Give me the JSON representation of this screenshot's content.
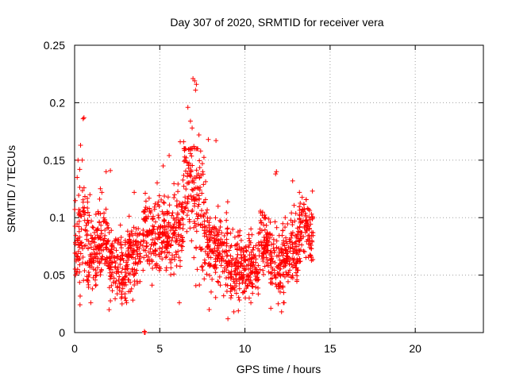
{
  "chart_data": {
    "type": "scatter",
    "title": "Day 307 of 2020, SRMTID for receiver vera",
    "xlabel": "GPS time / hours",
    "ylabel": "SRMTID / TECUs",
    "xlim": [
      0,
      24
    ],
    "ylim": [
      0,
      0.25
    ],
    "x_ticks": [
      0,
      5,
      10,
      15,
      20
    ],
    "x_tick_labels": [
      "0",
      "5",
      "10",
      "15",
      "20"
    ],
    "y_ticks": [
      0,
      0.05,
      0.1,
      0.15,
      0.2,
      0.25
    ],
    "y_tick_labels": [
      "0",
      "0.05",
      "0.1",
      "0.15",
      "0.2",
      "0.25"
    ],
    "grid": true,
    "marker": "+",
    "series_color": "#ff0000",
    "segments": [
      [
        0.0,
        0.45,
        0.082,
        0.03
      ],
      [
        0.45,
        0.8,
        0.09,
        0.03
      ],
      [
        0.8,
        1.3,
        0.07,
        0.02
      ],
      [
        1.3,
        2.0,
        0.08,
        0.022
      ],
      [
        2.0,
        2.6,
        0.062,
        0.022
      ],
      [
        2.6,
        3.2,
        0.055,
        0.02
      ],
      [
        3.2,
        3.9,
        0.07,
        0.02
      ],
      [
        4.0,
        4.8,
        0.088,
        0.022
      ],
      [
        4.8,
        5.8,
        0.082,
        0.022
      ],
      [
        5.8,
        6.4,
        0.092,
        0.022
      ],
      [
        6.4,
        7.1,
        0.13,
        0.035
      ],
      [
        7.1,
        7.6,
        0.108,
        0.035
      ],
      [
        7.6,
        8.2,
        0.08,
        0.025
      ],
      [
        8.2,
        9.0,
        0.07,
        0.022
      ],
      [
        9.0,
        10.0,
        0.06,
        0.018
      ],
      [
        10.0,
        10.8,
        0.058,
        0.018
      ],
      [
        10.8,
        11.5,
        0.075,
        0.02
      ],
      [
        11.5,
        12.5,
        0.062,
        0.02
      ],
      [
        12.5,
        13.2,
        0.075,
        0.02
      ],
      [
        13.2,
        14.0,
        0.09,
        0.02
      ]
    ],
    "fixed_points": [
      [
        0.55,
        0.187
      ],
      [
        0.5,
        0.186
      ],
      [
        6.95,
        0.221
      ],
      [
        7.05,
        0.219
      ],
      [
        7.15,
        0.216
      ],
      [
        7.1,
        0.211
      ],
      [
        6.65,
        0.196
      ],
      [
        6.8,
        0.184
      ],
      [
        6.9,
        0.178
      ],
      [
        7.3,
        0.172
      ],
      [
        6.4,
        0.166
      ],
      [
        7.0,
        0.162
      ],
      [
        7.4,
        0.158
      ],
      [
        6.55,
        0.152
      ],
      [
        7.5,
        0.147
      ],
      [
        0.35,
        0.163
      ],
      [
        0.2,
        0.15
      ],
      [
        0.45,
        0.15
      ],
      [
        0.3,
        0.142
      ],
      [
        0.15,
        0.135
      ],
      [
        5.55,
        0.154
      ],
      [
        7.85,
        0.168
      ],
      [
        8.3,
        0.167
      ],
      [
        6.2,
        0.166
      ],
      [
        11.85,
        0.14
      ],
      [
        11.8,
        0.138
      ],
      [
        12.8,
        0.132
      ],
      [
        13.2,
        0.122
      ],
      [
        1.85,
        0.14
      ],
      [
        2.1,
        0.141
      ],
      [
        5.2,
        0.145
      ],
      [
        0.9,
        0.12
      ],
      [
        1.6,
        0.122
      ],
      [
        3.5,
        0.122
      ],
      [
        9.0,
        0.012
      ],
      [
        9.35,
        0.018
      ],
      [
        3.05,
        0.026
      ],
      [
        2.95,
        0.03
      ],
      [
        0.95,
        0.026
      ],
      [
        6.15,
        0.026
      ],
      [
        7.9,
        0.02
      ],
      [
        11.95,
        0.025
      ],
      [
        12.15,
        0.018
      ],
      [
        12.3,
        0.026
      ],
      [
        10.25,
        0.03
      ],
      [
        8.75,
        0.032
      ],
      [
        4.1,
        0.0
      ],
      [
        4.12,
        0.0
      ],
      [
        4.14,
        0.0
      ],
      [
        4.1,
        0.001
      ]
    ]
  }
}
